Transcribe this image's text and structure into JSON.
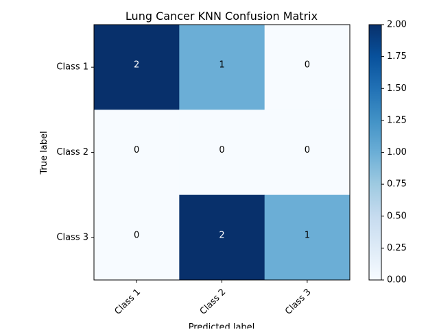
{
  "chart_data": {
    "type": "heatmap",
    "title": "Lung Cancer KNN Confusion Matrix",
    "xlabel": "Predicted label",
    "ylabel": "True label",
    "x_categories": [
      "Class 1",
      "Class 2",
      "Class 3"
    ],
    "y_categories": [
      "Class 1",
      "Class 2",
      "Class 3"
    ],
    "values": [
      [
        2,
        1,
        0
      ],
      [
        0,
        0,
        0
      ],
      [
        0,
        2,
        1
      ]
    ],
    "colormap": "Blues",
    "color_range": [
      0,
      2
    ],
    "colorbar_ticks": [
      "0.00",
      "0.25",
      "0.50",
      "0.75",
      "1.00",
      "1.25",
      "1.50",
      "1.75",
      "2.00"
    ],
    "colors": {
      "low": "#f7fbff",
      "mid": "#6baed6",
      "high": "#08306b",
      "text_light": "#ffffff",
      "text_dark": "#000000"
    }
  }
}
